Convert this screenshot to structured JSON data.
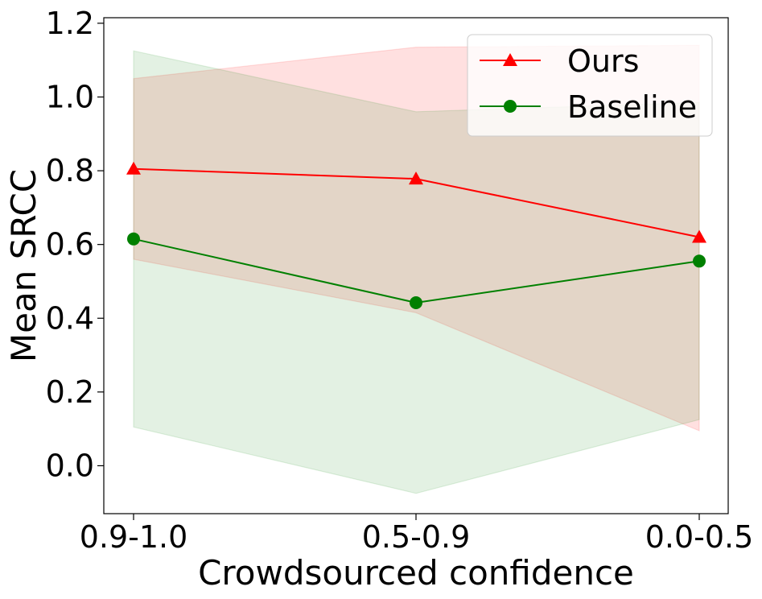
{
  "chart_data": {
    "type": "line",
    "title": "",
    "xlabel": "Crowdsourced confidence",
    "ylabel": "Mean SRCC",
    "categories": [
      "0.9-1.0",
      "0.5-0.9",
      "0.0-0.5"
    ],
    "ylim": [
      -0.13,
      1.215
    ],
    "yticks": [
      0.0,
      0.2,
      0.4,
      0.6,
      0.8,
      1.0,
      1.2
    ],
    "ytick_labels": [
      "0.0",
      "0.2",
      "0.4",
      "0.6",
      "0.8",
      "1.0",
      "1.2"
    ],
    "grid": false,
    "legend_position": "top-right",
    "series": [
      {
        "name": "Ours",
        "color": "#ff0000",
        "fill_color": "#ff0000",
        "marker": "triangle",
        "values": [
          0.805,
          0.778,
          0.62
        ],
        "lower": [
          0.56,
          0.415,
          0.095
        ],
        "upper": [
          1.05,
          1.135,
          1.14
        ]
      },
      {
        "name": "Baseline",
        "color": "#008000",
        "fill_color": "#008000",
        "marker": "circle",
        "values": [
          0.615,
          0.442,
          0.555
        ],
        "lower": [
          0.105,
          -0.075,
          0.125
        ],
        "upper": [
          1.125,
          0.96,
          0.985
        ]
      }
    ]
  }
}
